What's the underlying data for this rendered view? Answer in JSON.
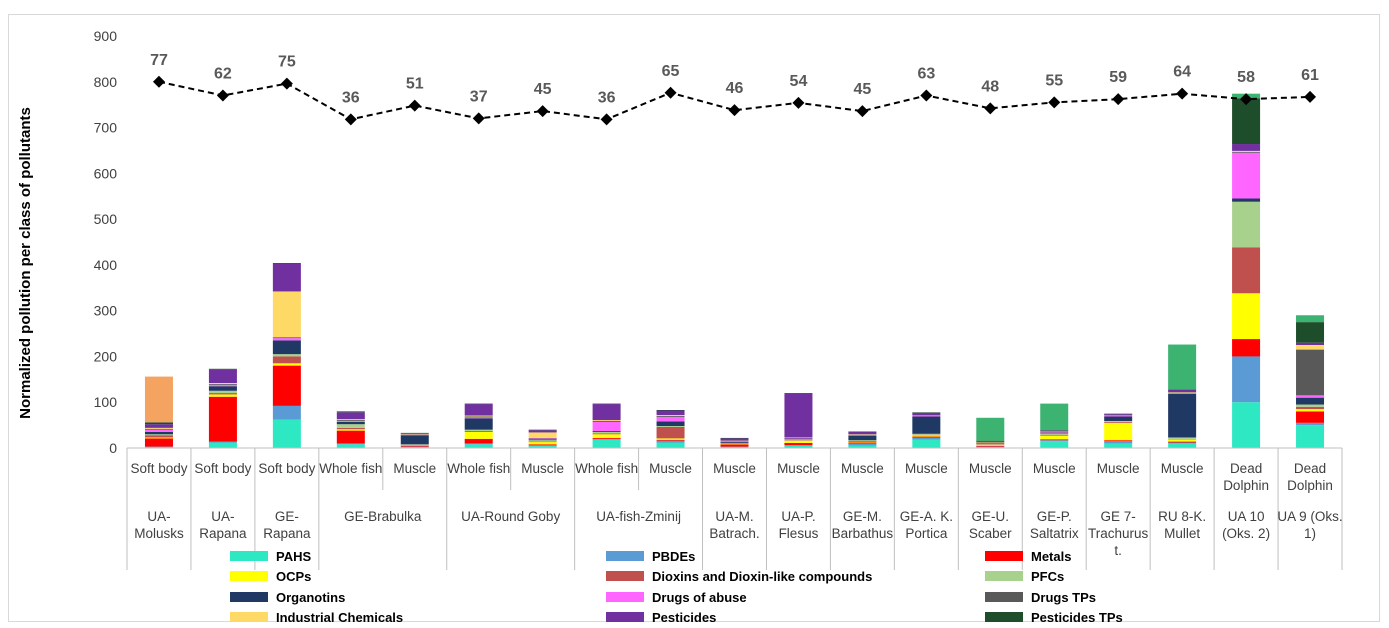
{
  "chart_data": {
    "type": "bar",
    "stacked": true,
    "ylabel": "Normalized  pollution per class of pollutants",
    "ylim": [
      0,
      900
    ],
    "yticks": [
      0,
      100,
      200,
      300,
      400,
      500,
      600,
      700,
      800,
      900
    ],
    "grid": false,
    "legend_position": "bottom",
    "categories": [
      {
        "tissue": "Soft body",
        "group": "UA-Molusks"
      },
      {
        "tissue": "Soft body",
        "group": "UA-Rapana"
      },
      {
        "tissue": "Soft body",
        "group": "GE-Rapana"
      },
      {
        "tissue": "Whole fish",
        "group": "GE-Brabulka"
      },
      {
        "tissue": "Muscle",
        "group": "GE-Brabulka"
      },
      {
        "tissue": "Whole fish",
        "group": "UA-Round Goby"
      },
      {
        "tissue": "Muscle",
        "group": "UA-Round Goby"
      },
      {
        "tissue": "Whole fish",
        "group": "UA-fish-Zminij"
      },
      {
        "tissue": "Muscle",
        "group": "UA-fish-Zminij"
      },
      {
        "tissue": "Muscle",
        "group": "UA-M. Batrach."
      },
      {
        "tissue": "Muscle",
        "group": "UA-P. Flesus"
      },
      {
        "tissue": "Muscle",
        "group": "GE-M. Barbathus"
      },
      {
        "tissue": "Muscle",
        "group": "GE-A. K. Portica"
      },
      {
        "tissue": "Muscle",
        "group": "GE-U. Scaber"
      },
      {
        "tissue": "Muscle",
        "group": "GE-P. Saltatrix"
      },
      {
        "tissue": "Muscle",
        "group": "GE 7-Trachurus t."
      },
      {
        "tissue": "Muscle",
        "group": "RU 8-K. Mullet"
      },
      {
        "tissue": "Dead Dolphin",
        "group": "UA 10 (Oks. 2)"
      },
      {
        "tissue": "Dead Dolphin",
        "group": "UA 9 (Oks. 1)"
      }
    ],
    "group_spans": [
      {
        "label": "UA-Molusks",
        "lines": [
          "UA-",
          "Molusks"
        ],
        "start": 0,
        "end": 0
      },
      {
        "label": "UA-Rapana",
        "lines": [
          "UA-",
          "Rapana"
        ],
        "start": 1,
        "end": 1
      },
      {
        "label": "GE-Rapana",
        "lines": [
          "GE-",
          "Rapana"
        ],
        "start": 2,
        "end": 2
      },
      {
        "label": "GE-Brabulka",
        "lines": [
          "GE-Brabulka"
        ],
        "start": 3,
        "end": 4
      },
      {
        "label": "UA-Round Goby",
        "lines": [
          "UA-Round Goby"
        ],
        "start": 5,
        "end": 6
      },
      {
        "label": "UA-fish-Zminij",
        "lines": [
          "UA-fish-Zminij"
        ],
        "start": 7,
        "end": 8
      },
      {
        "label": "UA-M. Batrach.",
        "lines": [
          "UA-M.",
          "Batrach."
        ],
        "start": 9,
        "end": 9
      },
      {
        "label": "UA-P. Flesus",
        "lines": [
          "UA-P.",
          "Flesus"
        ],
        "start": 10,
        "end": 10
      },
      {
        "label": "GE-M. Barbathus",
        "lines": [
          "GE-M.",
          "Barbathus"
        ],
        "start": 11,
        "end": 11
      },
      {
        "label": "GE-A. K. Portica",
        "lines": [
          "GE-A. K.",
          "Portica"
        ],
        "start": 12,
        "end": 12
      },
      {
        "label": "GE-U. Scaber",
        "lines": [
          "GE-U.",
          "Scaber"
        ],
        "start": 13,
        "end": 13
      },
      {
        "label": "GE-P. Saltatrix",
        "lines": [
          "GE-P.",
          "Saltatrix"
        ],
        "start": 14,
        "end": 14
      },
      {
        "label": "GE 7-Trachurus t.",
        "lines": [
          "GE 7-",
          "Trachurus",
          "t."
        ],
        "start": 15,
        "end": 15
      },
      {
        "label": "RU 8-K. Mullet",
        "lines": [
          "RU 8-K.",
          "Mullet"
        ],
        "start": 16,
        "end": 16
      },
      {
        "label": "UA 10 (Oks. 2)",
        "lines": [
          "UA 10",
          "(Oks. 2)"
        ],
        "start": 17,
        "end": 17
      },
      {
        "label": "UA 9 (Oks. 1)",
        "lines": [
          "UA 9 (Oks.",
          "1)"
        ],
        "start": 18,
        "end": 18
      }
    ],
    "series": [
      {
        "name": "PAHS",
        "color": "#2ee8c3",
        "values": [
          2,
          12,
          62,
          8,
          2,
          8,
          4,
          18,
          12,
          2,
          5,
          5,
          18,
          2,
          15,
          10,
          10,
          100,
          50
        ]
      },
      {
        "name": "PBDEs",
        "color": "#5b9bd5",
        "values": [
          1,
          2,
          30,
          2,
          1,
          2,
          2,
          2,
          4,
          1,
          1,
          5,
          5,
          1,
          2,
          5,
          2,
          100,
          5
        ]
      },
      {
        "name": "Metals",
        "color": "#ff0000",
        "values": [
          18,
          98,
          88,
          28,
          2,
          10,
          2,
          2,
          2,
          5,
          5,
          2,
          2,
          2,
          2,
          2,
          2,
          38,
          25
        ]
      },
      {
        "name": "OCPs",
        "color": "#ffff00",
        "values": [
          2,
          5,
          5,
          3,
          1,
          15,
          5,
          8,
          3,
          1,
          5,
          1,
          3,
          2,
          8,
          38,
          5,
          100,
          5
        ]
      },
      {
        "name": "Dioxins and Dioxin-like compounds",
        "color": "#c0504d",
        "values": [
          5,
          3,
          15,
          3,
          1,
          2,
          1,
          2,
          25,
          1,
          1,
          2,
          1,
          1,
          2,
          2,
          1,
          100,
          5
        ]
      },
      {
        "name": "PFCs",
        "color": "#a9d18e",
        "values": [
          2,
          5,
          5,
          8,
          1,
          3,
          3,
          3,
          2,
          1,
          2,
          2,
          2,
          1,
          3,
          2,
          3,
          100,
          5
        ]
      },
      {
        "name": "Organotins",
        "color": "#1f3864",
        "values": [
          5,
          10,
          30,
          5,
          20,
          25,
          2,
          2,
          10,
          2,
          2,
          10,
          38,
          1,
          1,
          10,
          95,
          7,
          15
        ]
      },
      {
        "name": "Drugs of abuse",
        "color": "#ff66ff",
        "values": [
          5,
          3,
          5,
          2,
          1,
          2,
          2,
          20,
          10,
          1,
          1,
          1,
          1,
          1,
          1,
          1,
          2,
          100,
          5
        ]
      },
      {
        "name": "Drugs TPs",
        "color": "#595959",
        "values": [
          2,
          2,
          2,
          2,
          1,
          2,
          1,
          2,
          2,
          1,
          1,
          1,
          1,
          1,
          1,
          1,
          1,
          2,
          100
        ]
      },
      {
        "name": "Industrial Chemicals",
        "color": "#ffd966",
        "values": [
          2,
          2,
          100,
          2,
          1,
          2,
          12,
          2,
          2,
          1,
          1,
          1,
          1,
          1,
          1,
          1,
          1,
          2,
          10
        ]
      },
      {
        "name": "Pesticides",
        "color": "#7030a0",
        "values": [
          8,
          30,
          60,
          15,
          1,
          25,
          5,
          35,
          10,
          5,
          95,
          5,
          5,
          2,
          2,
          2,
          5,
          15,
          5
        ]
      },
      {
        "name": "Pesticides TPs",
        "color": "#1e4d2b",
        "values": [
          4,
          1,
          2,
          2,
          1,
          1,
          1,
          1,
          1,
          1,
          1,
          1,
          1,
          1,
          1,
          1,
          1,
          100,
          45
        ]
      },
      {
        "name": "",
        "color": "#f4a460",
        "values": [
          100,
          0,
          0,
          0,
          0,
          0,
          0,
          0,
          0,
          0,
          0,
          0,
          0,
          0,
          0,
          0,
          0,
          0,
          0
        ]
      },
      {
        "name": "",
        "color": "#3cb371",
        "values": [
          0,
          0,
          0,
          0,
          0,
          0,
          0,
          0,
          0,
          0,
          0,
          0,
          0,
          50,
          58,
          0,
          98,
          10,
          15
        ]
      }
    ],
    "line": {
      "y": [
        800,
        770,
        796,
        718,
        748,
        720,
        736,
        718,
        776,
        738,
        754,
        736,
        770,
        742,
        755,
        762,
        774,
        762,
        767
      ],
      "labels": [
        77,
        62,
        75,
        36,
        51,
        37,
        45,
        36,
        65,
        46,
        54,
        45,
        63,
        48,
        55,
        59,
        64,
        58,
        61
      ],
      "color": "#000000"
    }
  }
}
